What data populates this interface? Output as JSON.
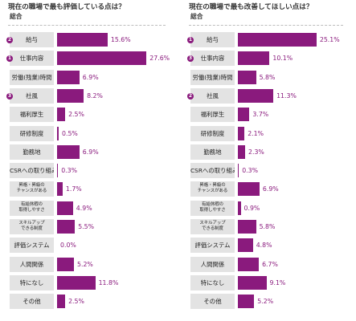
{
  "chart_data": [
    {
      "type": "bar",
      "orientation": "horizontal",
      "title": "現在の職場で最も評価している点は？",
      "subtitle": "総合",
      "categories": [
        "給与",
        "仕事内容",
        "労働(残業)時間",
        "社風",
        "福利厚生",
        "研修制度",
        "勤務地",
        "CSRへの取り組み",
        "昇格・昇級の\nチャンスがある",
        "有給休暇の\n取得しやすさ",
        "スキルアップ\nできる制度",
        "評価システム",
        "人間関係",
        "特になし",
        "その他"
      ],
      "values": [
        15.6,
        27.6,
        6.9,
        8.2,
        2.5,
        0.5,
        6.9,
        0.3,
        1.7,
        4.9,
        5.5,
        0.0,
        5.2,
        11.8,
        2.5
      ],
      "value_labels": [
        "15.6%",
        "27.6%",
        "6.9%",
        "8.2%",
        "2.5%",
        "0.5%",
        "6.9%",
        "0.3%",
        "1.7%",
        "4.9%",
        "5.5%",
        "0.0%",
        "5.2%",
        "11.8%",
        "2.5%"
      ],
      "ranks": [
        "2",
        "1",
        "",
        "3",
        "",
        "",
        "",
        "",
        "",
        "",
        "",
        "",
        "",
        "",
        ""
      ],
      "xlim": [
        0,
        30
      ]
    },
    {
      "type": "bar",
      "orientation": "horizontal",
      "title": "現在の職場で最も改善してほしい点は？",
      "subtitle": "総合",
      "categories": [
        "給与",
        "仕事内容",
        "労働(残業)時間",
        "社風",
        "福利厚生",
        "研修制度",
        "勤務地",
        "CSRへの取り組み",
        "昇格・昇級の\nチャンスがある",
        "有給休暇の\n取得しやすさ",
        "スキルアップ\nできる制度",
        "評価システム",
        "人間関係",
        "特になし",
        "その他"
      ],
      "values": [
        25.1,
        10.1,
        5.8,
        11.3,
        3.7,
        2.1,
        2.3,
        0.3,
        6.9,
        0.9,
        5.8,
        4.8,
        6.7,
        9.1,
        5.2
      ],
      "value_labels": [
        "25.1%",
        "10.1%",
        "5.8%",
        "11.3%",
        "3.7%",
        "2.1%",
        "2.3%",
        "0.3%",
        "6.9%",
        "0.9%",
        "5.8%",
        "4.8%",
        "6.7%",
        "9.1%",
        "5.2%"
      ],
      "ranks": [
        "1",
        "3",
        "",
        "2",
        "",
        "",
        "",
        "",
        "",
        "",
        "",
        "",
        "",
        "",
        ""
      ],
      "xlim": [
        0,
        30
      ]
    }
  ],
  "colors": {
    "bar": "#8a1a7d",
    "value_text": "#8a1a7d",
    "label_bg": "#e3e3e3"
  }
}
